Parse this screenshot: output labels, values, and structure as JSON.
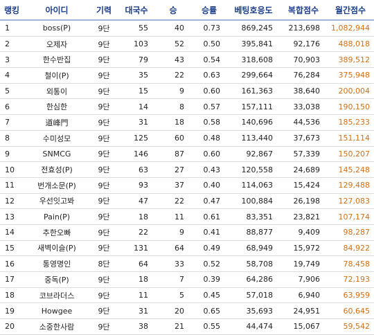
{
  "headers": [
    "랭킹",
    "아이디",
    "기력",
    "대국수",
    "승",
    "승률",
    "베팅호응도",
    "복합점수",
    "월간점수"
  ],
  "rows": [
    {
      "rank": "1",
      "id": "boss(P)",
      "level": "9단",
      "games": "55",
      "wins": "40",
      "rate": "0.73",
      "betting": "869,245",
      "composite": "213,698",
      "monthly": "1,082,944"
    },
    {
      "rank": "2",
      "id": "오제자",
      "level": "9단",
      "games": "103",
      "wins": "52",
      "rate": "0.50",
      "betting": "395,841",
      "composite": "92,176",
      "monthly": "488,018"
    },
    {
      "rank": "3",
      "id": "한수반집",
      "level": "9단",
      "games": "79",
      "wins": "43",
      "rate": "0.54",
      "betting": "318,608",
      "composite": "70,903",
      "monthly": "389,512"
    },
    {
      "rank": "4",
      "id": "철이(P)",
      "level": "9단",
      "games": "35",
      "wins": "22",
      "rate": "0.63",
      "betting": "299,664",
      "composite": "76,284",
      "monthly": "375,948"
    },
    {
      "rank": "5",
      "id": "외통이",
      "level": "9단",
      "games": "15",
      "wins": "9",
      "rate": "0.60",
      "betting": "161,363",
      "composite": "38,640",
      "monthly": "200,004"
    },
    {
      "rank": "6",
      "id": "한심한",
      "level": "9단",
      "games": "14",
      "wins": "8",
      "rate": "0.57",
      "betting": "157,111",
      "composite": "33,038",
      "monthly": "190,150"
    },
    {
      "rank": "7",
      "id": "道峰門",
      "level": "9단",
      "games": "31",
      "wins": "18",
      "rate": "0.58",
      "betting": "140,696",
      "composite": "44,536",
      "monthly": "185,233"
    },
    {
      "rank": "8",
      "id": "수미성모",
      "level": "9단",
      "games": "125",
      "wins": "60",
      "rate": "0.48",
      "betting": "113,440",
      "composite": "37,673",
      "monthly": "151,114"
    },
    {
      "rank": "9",
      "id": "SNMCG",
      "level": "9단",
      "games": "146",
      "wins": "87",
      "rate": "0.60",
      "betting": "92,867",
      "composite": "57,339",
      "monthly": "150,207"
    },
    {
      "rank": "10",
      "id": "전효성(P)",
      "level": "9단",
      "games": "63",
      "wins": "27",
      "rate": "0.43",
      "betting": "120,558",
      "composite": "24,689",
      "monthly": "145,248"
    },
    {
      "rank": "11",
      "id": "번개소문(P)",
      "level": "9단",
      "games": "93",
      "wins": "37",
      "rate": "0.40",
      "betting": "114,063",
      "composite": "15,424",
      "monthly": "129,488"
    },
    {
      "rank": "12",
      "id": "우선잇고봐",
      "level": "9단",
      "games": "47",
      "wins": "22",
      "rate": "0.47",
      "betting": "100,884",
      "composite": "26,198",
      "monthly": "127,083"
    },
    {
      "rank": "13",
      "id": "Pain(P)",
      "level": "9단",
      "games": "18",
      "wins": "11",
      "rate": "0.61",
      "betting": "83,351",
      "composite": "23,821",
      "monthly": "107,174"
    },
    {
      "rank": "14",
      "id": "추한오빠",
      "level": "9단",
      "games": "22",
      "wins": "9",
      "rate": "0.41",
      "betting": "88,877",
      "composite": "9,409",
      "monthly": "98,287"
    },
    {
      "rank": "15",
      "id": "새벽이슬(P)",
      "level": "9단",
      "games": "131",
      "wins": "64",
      "rate": "0.49",
      "betting": "68,949",
      "composite": "15,972",
      "monthly": "84,922"
    },
    {
      "rank": "16",
      "id": "통영명인",
      "level": "8단",
      "games": "64",
      "wins": "33",
      "rate": "0.52",
      "betting": "58,708",
      "composite": "19,749",
      "monthly": "78,458"
    },
    {
      "rank": "17",
      "id": "중독(P)",
      "level": "9단",
      "games": "18",
      "wins": "7",
      "rate": "0.39",
      "betting": "64,286",
      "composite": "7,906",
      "monthly": "72,193"
    },
    {
      "rank": "18",
      "id": "코브라더스",
      "level": "9단",
      "games": "11",
      "wins": "5",
      "rate": "0.45",
      "betting": "57,018",
      "composite": "6,940",
      "monthly": "63,959"
    },
    {
      "rank": "19",
      "id": "Howgee",
      "level": "9단",
      "games": "31",
      "wins": "20",
      "rate": "0.65",
      "betting": "35,693",
      "composite": "24,951",
      "monthly": "60,645"
    },
    {
      "rank": "20",
      "id": "소중한사람",
      "level": "9단",
      "games": "38",
      "wins": "21",
      "rate": "0.55",
      "betting": "44,474",
      "composite": "15,067",
      "monthly": "59,542"
    }
  ],
  "colors": {
    "header_text": "#1a3d8a",
    "header_rule": "#9fb6d8",
    "monthly_score": "#d07018",
    "row_rule": "#dcdcdc"
  }
}
